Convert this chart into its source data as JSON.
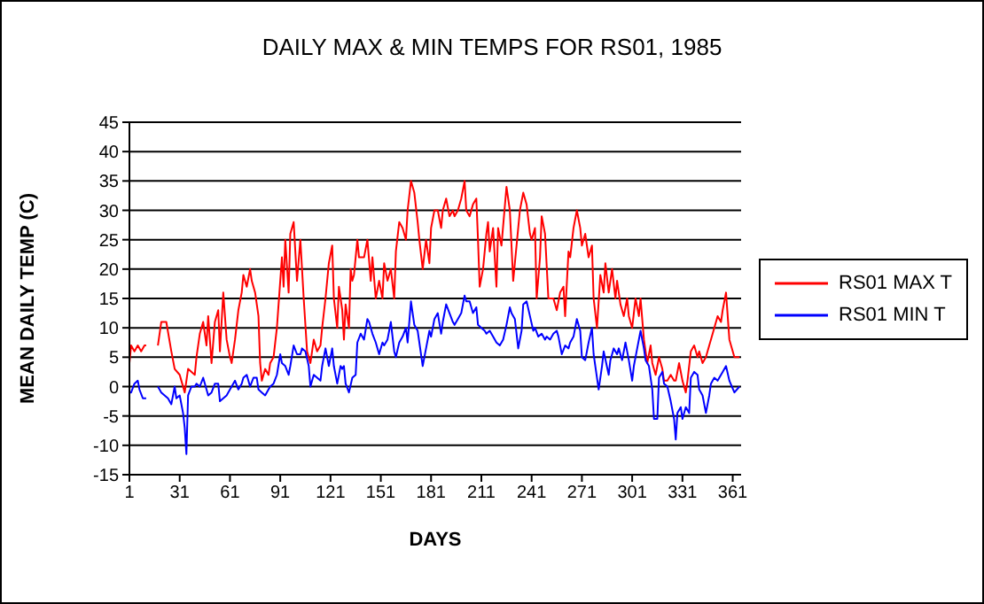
{
  "chart_data": {
    "type": "line",
    "title": "DAILY MAX & MIN TEMPS FOR RS01, 1985",
    "xlabel": "DAYS",
    "ylabel": "MEAN DAILY TEMP (C)",
    "xlim": [
      1,
      366
    ],
    "xticks": [
      1,
      31,
      61,
      91,
      121,
      151,
      181,
      211,
      241,
      271,
      301,
      331,
      361
    ],
    "ylim": [
      -15,
      45
    ],
    "yticks": [
      -15,
      -10,
      -5,
      0,
      5,
      10,
      15,
      20,
      25,
      30,
      35,
      40,
      45
    ],
    "grid": "y",
    "legend": "right",
    "series": [
      {
        "name": "RS01 MAX T",
        "color": "#ff0000",
        "x": [
          1,
          2,
          4,
          6,
          8,
          10,
          11,
          14,
          18,
          20,
          23,
          26,
          28,
          31,
          32,
          34,
          36,
          40,
          41,
          43,
          45,
          47,
          48,
          50,
          52,
          54,
          55,
          57,
          59,
          61,
          62,
          64,
          66,
          68,
          69,
          71,
          73,
          74,
          76,
          78,
          79,
          80,
          82,
          84,
          85,
          87,
          89,
          91,
          92,
          93,
          94,
          96,
          97,
          99,
          101,
          103,
          105,
          107,
          109,
          111,
          113,
          115,
          116,
          118,
          120,
          122,
          123,
          125,
          126,
          128,
          129,
          130,
          132,
          133,
          134,
          135,
          137,
          138,
          139,
          141,
          143,
          145,
          146,
          148,
          150,
          152,
          153,
          155,
          157,
          159,
          160,
          162,
          164,
          166,
          167,
          169,
          171,
          173,
          174,
          176,
          178,
          180,
          181,
          183,
          185,
          187,
          188,
          190,
          192,
          194,
          195,
          197,
          199,
          201,
          202,
          204,
          206,
          208,
          209,
          210,
          212,
          214,
          215,
          216,
          218,
          220,
          221,
          223,
          226,
          228,
          230,
          231,
          234,
          236,
          238,
          240,
          241,
          243,
          244,
          246,
          247,
          249,
          251,
          253,
          254,
          256,
          258,
          260,
          261,
          263,
          264,
          266,
          268,
          270,
          271,
          273,
          275,
          277,
          278,
          280,
          282,
          284,
          285,
          287,
          289,
          291,
          292,
          294,
          296,
          298,
          299,
          301,
          303,
          305,
          306,
          308,
          310,
          312,
          313,
          315,
          317,
          319,
          320,
          322,
          324,
          326,
          327,
          329,
          331,
          333,
          334,
          336,
          338,
          340,
          341,
          343,
          345,
          347,
          348,
          350,
          352,
          354,
          355,
          357,
          359,
          362,
          365
        ],
        "values": [
          4,
          7,
          6,
          7,
          6,
          7,
          7,
          null,
          7,
          11,
          11,
          6,
          3,
          2,
          1,
          -1,
          3,
          2,
          5,
          9,
          11,
          7,
          12,
          4,
          11,
          13,
          6,
          16,
          8,
          5,
          4,
          8,
          13,
          16,
          19,
          17,
          20,
          18,
          16,
          12,
          4,
          1,
          3,
          2,
          4,
          5,
          10,
          18,
          22,
          17,
          25,
          16,
          26,
          28,
          18,
          25,
          15,
          6,
          4,
          8,
          6,
          7,
          10,
          15,
          21,
          24,
          15,
          10,
          17,
          13,
          8,
          14,
          10,
          20,
          18,
          19,
          25,
          22,
          22,
          22,
          25,
          18,
          22,
          15,
          18,
          15,
          21,
          18,
          20,
          15,
          23,
          28,
          27,
          25,
          30,
          35,
          33,
          28,
          25,
          20,
          25,
          21,
          27,
          30,
          30,
          27,
          30,
          32,
          29,
          30,
          29,
          30,
          32,
          35,
          30,
          29,
          31,
          32,
          25,
          17,
          20,
          26,
          28,
          23,
          27,
          17,
          27,
          24,
          34,
          30,
          18,
          21,
          30,
          33,
          31,
          26,
          25,
          27,
          15,
          22,
          29,
          26,
          15,
          15,
          15,
          13,
          16,
          17,
          12,
          23,
          22,
          27,
          30,
          27,
          24,
          26,
          22,
          24,
          15,
          10,
          19,
          16,
          21,
          16,
          20,
          15,
          18,
          14,
          12,
          15,
          12,
          10,
          15,
          12,
          15,
          8,
          4,
          7,
          4,
          2,
          5,
          3,
          1,
          1,
          2,
          1,
          1,
          4,
          1,
          -1,
          1,
          6,
          7,
          5,
          6,
          4,
          5,
          7,
          8,
          10,
          12,
          11,
          13,
          16,
          8,
          5,
          5
        ]
      },
      {
        "name": "RS01 MIN T",
        "color": "#0000ff",
        "x": [
          1,
          2,
          4,
          6,
          7,
          9,
          11,
          14,
          18,
          20,
          22,
          24,
          26,
          28,
          29,
          31,
          33,
          34,
          35,
          36,
          38,
          40,
          41,
          43,
          45,
          47,
          48,
          50,
          52,
          54,
          55,
          57,
          59,
          61,
          62,
          64,
          66,
          68,
          69,
          71,
          73,
          75,
          77,
          78,
          80,
          82,
          84,
          85,
          87,
          89,
          91,
          92,
          94,
          96,
          97,
          99,
          101,
          103,
          104,
          106,
          108,
          109,
          111,
          113,
          115,
          116,
          118,
          120,
          122,
          123,
          125,
          127,
          128,
          129,
          130,
          132,
          134,
          136,
          137,
          139,
          141,
          143,
          144,
          146,
          148,
          150,
          152,
          153,
          155,
          157,
          159,
          160,
          162,
          164,
          166,
          167,
          169,
          171,
          173,
          174,
          176,
          178,
          180,
          181,
          183,
          185,
          187,
          188,
          190,
          192,
          194,
          195,
          197,
          199,
          201,
          202,
          204,
          206,
          208,
          209,
          211,
          213,
          214,
          216,
          218,
          220,
          222,
          224,
          226,
          228,
          229,
          231,
          233,
          235,
          236,
          238,
          240,
          242,
          243,
          245,
          247,
          249,
          250,
          252,
          254,
          256,
          257,
          259,
          261,
          263,
          264,
          266,
          268,
          270,
          271,
          273,
          275,
          277,
          278,
          280,
          281,
          283,
          284,
          287,
          288,
          290,
          292,
          293,
          295,
          297,
          299,
          301,
          302,
          304,
          306,
          308,
          309,
          311,
          313,
          314,
          316,
          317,
          319,
          320,
          322,
          324,
          326,
          327,
          328,
          330,
          331,
          333,
          335,
          336,
          338,
          340,
          341,
          343,
          345,
          347,
          348,
          350,
          352,
          354,
          355,
          357,
          359,
          362,
          365
        ],
        "values": [
          -1,
          -1,
          0.5,
          1,
          -0.5,
          -2,
          -2,
          null,
          0,
          -1,
          -1.5,
          -2,
          -3,
          0,
          -2,
          -1.5,
          -4.5,
          -7,
          -11.5,
          -1.5,
          0,
          0,
          0.5,
          0,
          1.5,
          -0.5,
          -1.5,
          -1,
          0.5,
          0.5,
          -2.5,
          -2,
          -1.5,
          -0.5,
          0,
          1,
          -0.5,
          0.5,
          1.5,
          2,
          0,
          1.5,
          1.5,
          -0.5,
          -1,
          -1.5,
          -0.5,
          0,
          0.5,
          2,
          5.5,
          4,
          3.5,
          2,
          3.5,
          7,
          5.5,
          5.5,
          6.5,
          6,
          3.5,
          0,
          2,
          1.5,
          1,
          3.5,
          6.5,
          3.5,
          6.5,
          3.5,
          0.5,
          3.5,
          3,
          3.5,
          0.5,
          -1,
          1.5,
          2,
          7.5,
          9,
          8,
          11.5,
          11,
          9,
          7.5,
          5.5,
          7.5,
          7,
          8,
          11,
          6,
          5,
          7.5,
          8.5,
          10,
          7.5,
          14.5,
          10.5,
          9.5,
          7.5,
          3.5,
          6.5,
          9.5,
          8.5,
          11.5,
          12.5,
          9,
          11,
          14,
          12.5,
          11,
          10.5,
          11.5,
          12.5,
          15.5,
          14.5,
          14.5,
          12.5,
          13.5,
          10.5,
          10,
          9.5,
          9,
          9.5,
          8.5,
          7.5,
          7,
          8,
          10.5,
          13.5,
          12.5,
          11.5,
          6.5,
          9.5,
          14,
          14.5,
          12,
          9.5,
          10,
          8.5,
          9,
          8,
          8.5,
          8,
          9,
          9.5,
          8.5,
          5.5,
          7,
          6.5,
          7.5,
          8.5,
          11.5,
          9.5,
          5,
          4.5,
          7.5,
          10,
          5.5,
          1.5,
          -0.5,
          3.5,
          6,
          2,
          4.5,
          6.5,
          5.5,
          6.5,
          4.5,
          7.5,
          4.5,
          1,
          3.5,
          6.5,
          9.5,
          6.5,
          4.5,
          3.5,
          -0.5,
          -5.5,
          -5.5,
          1.5,
          2.5,
          0.5,
          0,
          -2.5,
          -5.5,
          -9,
          -4.5,
          -3.5,
          -5.5,
          -3.5,
          -4.5,
          1.5,
          2.5,
          2,
          -0.5,
          -1.5,
          -4.5,
          -1.5,
          0.5,
          1.5,
          1,
          2,
          2.5,
          3.5,
          1,
          -1,
          0
        ]
      }
    ]
  }
}
